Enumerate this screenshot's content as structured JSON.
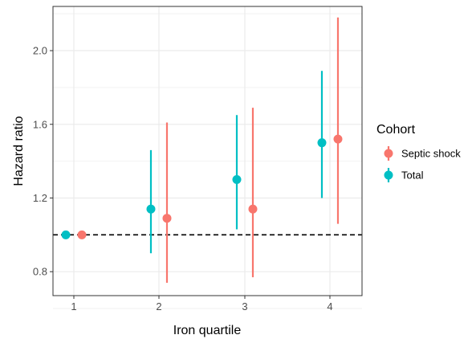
{
  "chart_data": {
    "type": "scatter",
    "subtype": "point-range",
    "xlabel": "Iron quartile",
    "ylabel": "Hazard ratio",
    "x_categories": [
      "1",
      "2",
      "3",
      "4"
    ],
    "y_ticks": [
      "0.8",
      "1.2",
      "1.6",
      "2.0"
    ],
    "ylim": [
      0.67,
      2.24
    ],
    "reference_line": {
      "y": 1.0,
      "style": "dashed",
      "color": "#000000"
    },
    "grid": true,
    "legend": {
      "title": "Cohort",
      "position": "right"
    },
    "series": [
      {
        "name": "Septic shock",
        "color": "#F8766D",
        "points": [
          {
            "x": "1",
            "y": 1.0,
            "lower": 1.0,
            "upper": 1.0
          },
          {
            "x": "2",
            "y": 1.09,
            "lower": 0.74,
            "upper": 1.61
          },
          {
            "x": "3",
            "y": 1.14,
            "lower": 0.77,
            "upper": 1.69
          },
          {
            "x": "4",
            "y": 1.52,
            "lower": 1.06,
            "upper": 2.18
          }
        ]
      },
      {
        "name": "Total",
        "color": "#00BFC4",
        "points": [
          {
            "x": "1",
            "y": 1.0,
            "lower": 1.0,
            "upper": 1.0
          },
          {
            "x": "2",
            "y": 1.14,
            "lower": 0.9,
            "upper": 1.46
          },
          {
            "x": "3",
            "y": 1.3,
            "lower": 1.03,
            "upper": 1.65
          },
          {
            "x": "4",
            "y": 1.5,
            "lower": 1.2,
            "upper": 1.89
          }
        ]
      }
    ]
  }
}
